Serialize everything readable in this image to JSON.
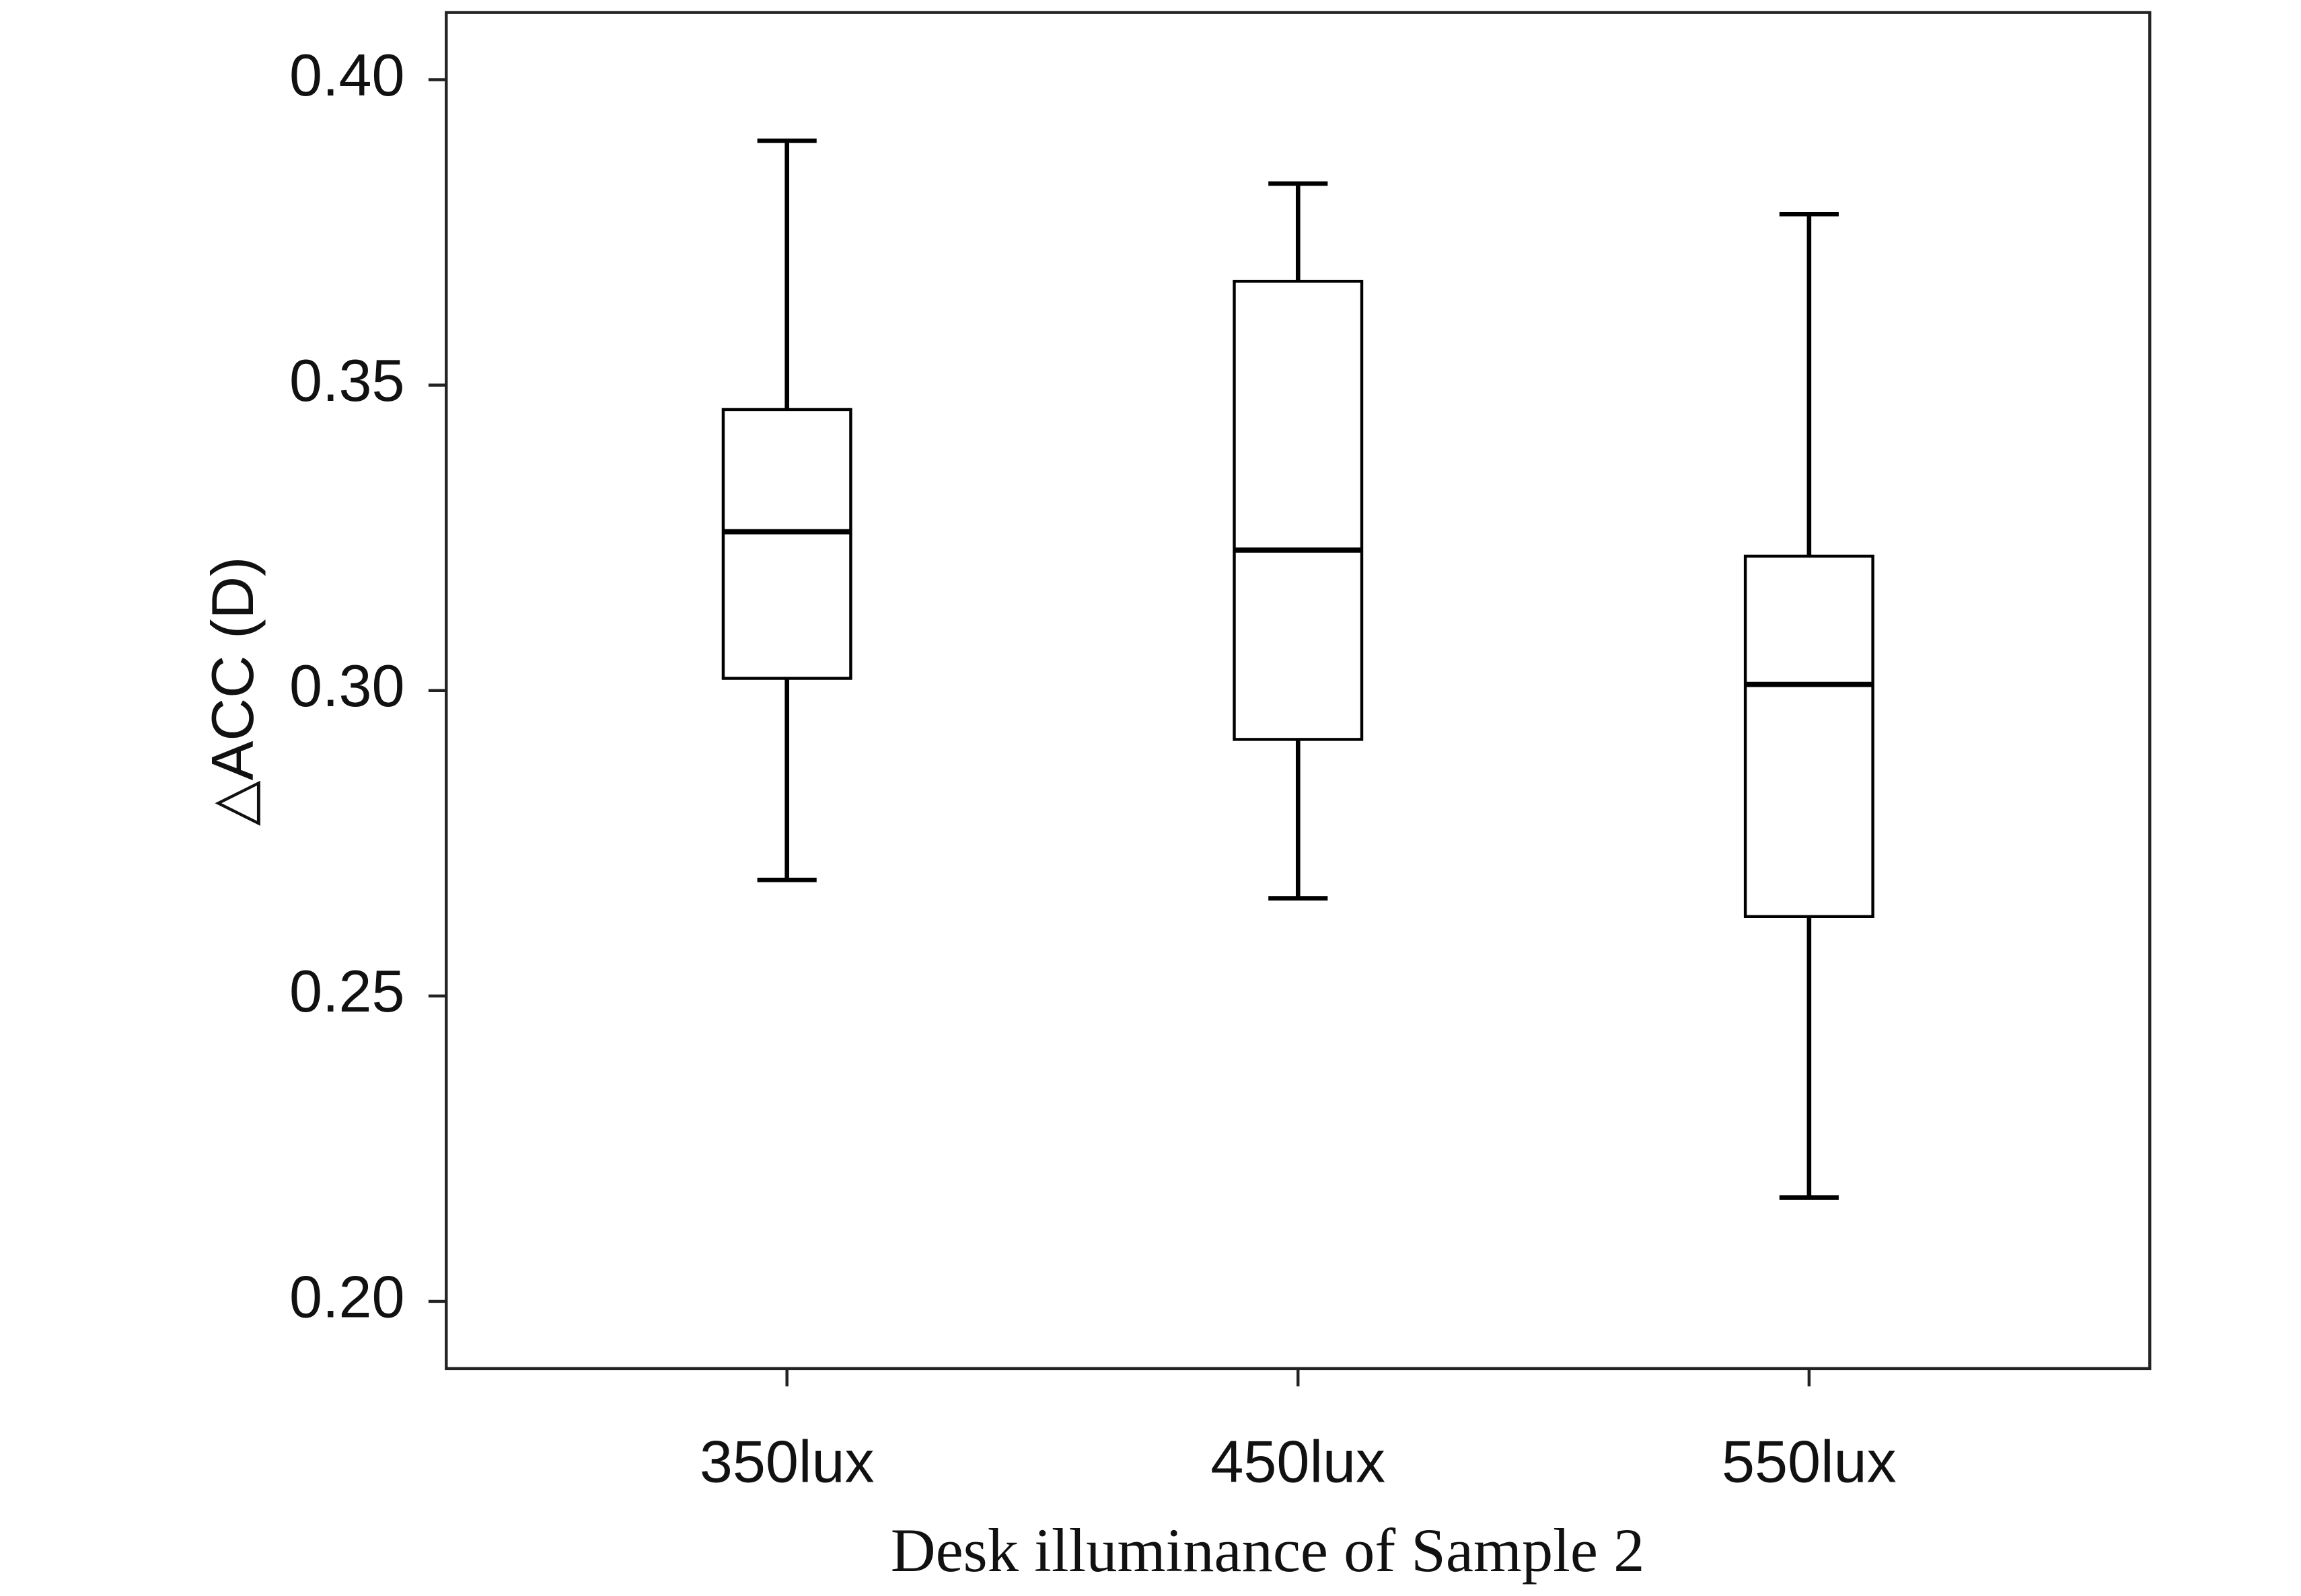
{
  "chart_data": {
    "type": "box",
    "x_label": "Desk illuminance of Sample 2",
    "y_label": "△ACC (D)",
    "categories": [
      "350lux",
      "450lux",
      "550lux"
    ],
    "min": [
      0.269,
      0.266,
      0.217
    ],
    "q1": [
      0.302,
      0.292,
      0.263
    ],
    "median": [
      0.326,
      0.323,
      0.301
    ],
    "q3": [
      0.346,
      0.367,
      0.322
    ],
    "max": [
      0.39,
      0.383,
      0.378
    ],
    "color": "#000000",
    "ylim": [
      0.189,
      0.411
    ],
    "yticks": [
      {
        "value": 0.2,
        "label": "0.20"
      },
      0.25,
      {
        "value": 0.3,
        "label": "0.30"
      },
      0.35,
      {
        "value": 0.4,
        "label": "0.40"
      }
    ]
  }
}
